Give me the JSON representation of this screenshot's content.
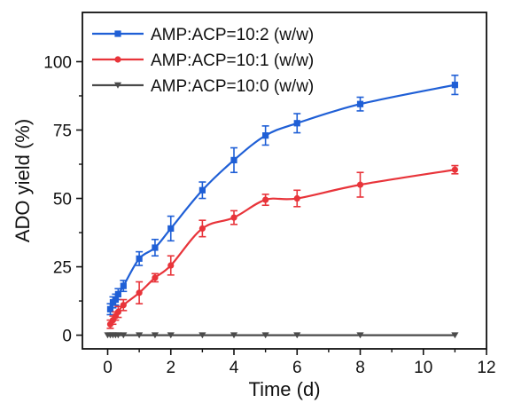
{
  "chart_data": {
    "type": "line",
    "xlabel": "Time (d)",
    "ylabel": "ADO yield (%)",
    "xlim": [
      -0.8,
      12
    ],
    "ylim": [
      -5,
      118
    ],
    "x_ticks": [
      0,
      2,
      4,
      6,
      8,
      10,
      12
    ],
    "y_ticks": [
      0,
      25,
      50,
      75,
      100
    ],
    "grid": false,
    "legend_position": "top-left",
    "series": [
      {
        "name": "AMP:ACP=10:2 (w/w)",
        "color": "#1f5fd6",
        "marker": "square",
        "x": [
          0.083,
          0.167,
          0.25,
          0.333,
          0.5,
          1,
          1.5,
          2,
          3,
          4,
          5,
          6,
          8,
          11
        ],
        "y": [
          9.5,
          12,
          13,
          15,
          18,
          28,
          32,
          39,
          53,
          64,
          73,
          77.5,
          84.5,
          91.5
        ],
        "err": [
          2,
          2,
          2,
          2,
          2,
          2.5,
          3,
          4.5,
          3,
          4.5,
          3.5,
          3.5,
          2.5,
          3.5
        ]
      },
      {
        "name": "AMP:ACP=10:1 (w/w)",
        "color": "#e8343a",
        "marker": "circle",
        "x": [
          0.083,
          0.167,
          0.25,
          0.333,
          0.5,
          1,
          1.5,
          2,
          3,
          4,
          5,
          6,
          8,
          11
        ],
        "y": [
          4,
          5.5,
          7,
          8.5,
          11,
          15.5,
          21,
          25.5,
          39,
          43,
          49.5,
          50,
          55,
          60.5
        ],
        "err": [
          1.5,
          1.5,
          1.5,
          2,
          2,
          4,
          1.5,
          3.5,
          3,
          2.5,
          2,
          3,
          4.5,
          1.5
        ]
      },
      {
        "name": "AMP:ACP=10:0 (w/w)",
        "color": "#4a4a4a",
        "marker": "triangle-down",
        "x": [
          0,
          0.083,
          0.167,
          0.25,
          0.333,
          0.5,
          1,
          1.5,
          2,
          3,
          4,
          5,
          6,
          8,
          11
        ],
        "y": [
          0,
          0,
          0,
          0,
          0,
          0,
          0,
          0,
          0,
          0,
          0,
          0,
          0,
          0,
          0
        ],
        "err": [
          0,
          0,
          0,
          0,
          0,
          0,
          0,
          0,
          0,
          0,
          0,
          0,
          0,
          0,
          0
        ]
      }
    ]
  }
}
